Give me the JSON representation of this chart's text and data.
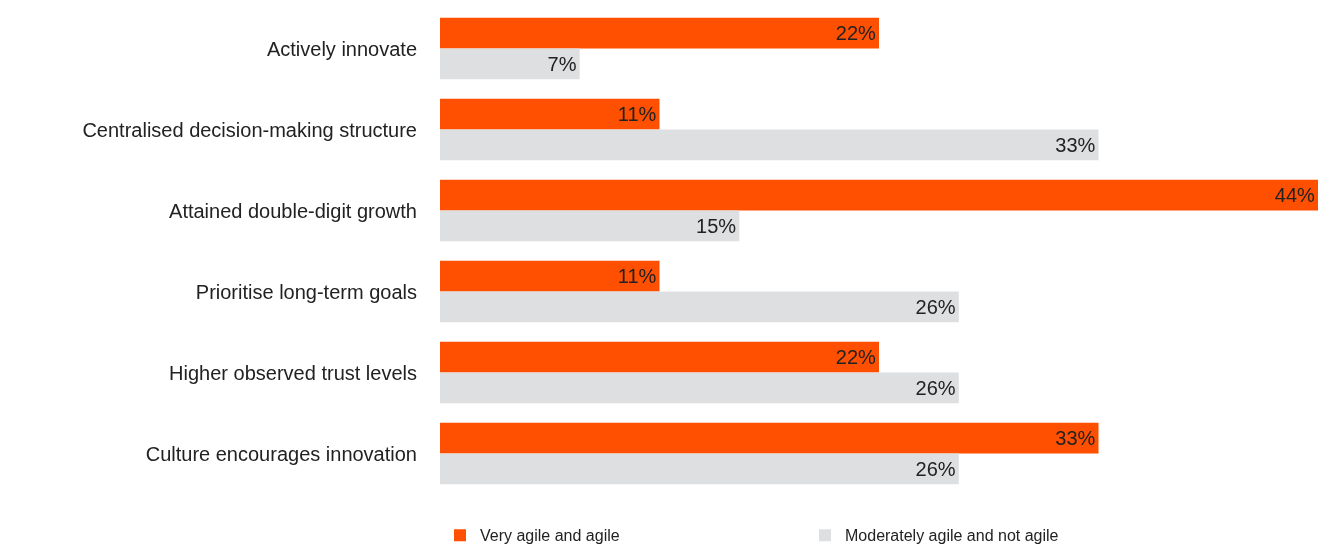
{
  "chart_data": {
    "type": "bar",
    "orientation": "horizontal",
    "categories": [
      "Actively innovate",
      "Centralised decision-making structure",
      "Attained double-digit growth",
      "Prioritise long-term goals",
      "Higher observed trust levels",
      "Culture encourages innovation"
    ],
    "series": [
      {
        "name": "Very agile and agile",
        "color": "#fe5000",
        "values": [
          22,
          11,
          44,
          11,
          22,
          33
        ],
        "value_labels": [
          "22%",
          "11%",
          "44%",
          "11%",
          "22%",
          "33%"
        ]
      },
      {
        "name": "Moderately agile and not agile",
        "color": "#dedfe1",
        "values": [
          7,
          33,
          15,
          26,
          26,
          26
        ],
        "value_labels": [
          "7%",
          "33%",
          "15%",
          "26%",
          "26%",
          "26%"
        ]
      }
    ],
    "legend": "bottom"
  }
}
